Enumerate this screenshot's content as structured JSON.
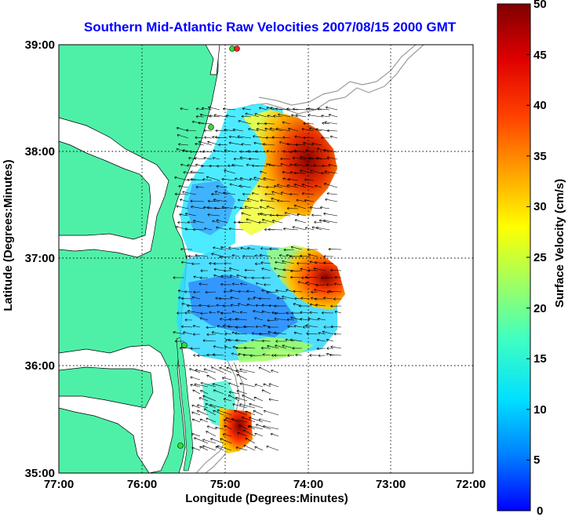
{
  "title": "Southern Mid-Atlantic Raw Velocities 2007/08/15 2000 GMT",
  "xlabel": "Longitude (Degrees:Minutes)",
  "ylabel": "Latitude (Degrees:Minutes)",
  "colorbar_label": "Surface Velocity (cm/s)",
  "x_ticks": [
    "77:00",
    "76:00",
    "75:00",
    "74:00",
    "73:00",
    "72:00"
  ],
  "y_ticks": [
    "39:00",
    "38:00",
    "37:00",
    "36:00",
    "35:00"
  ],
  "colorbar_ticks": [
    "50",
    "45",
    "40",
    "35",
    "30",
    "25",
    "20",
    "15",
    "10",
    "5",
    "0"
  ],
  "colors": {
    "land": "#4ef0a8",
    "title": "#0000ff",
    "station": "#33dd33",
    "station_alt": "#ff2222"
  },
  "map": {
    "lon_range": [
      -77,
      -72
    ],
    "lat_range": [
      35,
      39
    ],
    "color_range_cm_s": [
      0,
      50
    ],
    "grid": "dotted"
  }
}
